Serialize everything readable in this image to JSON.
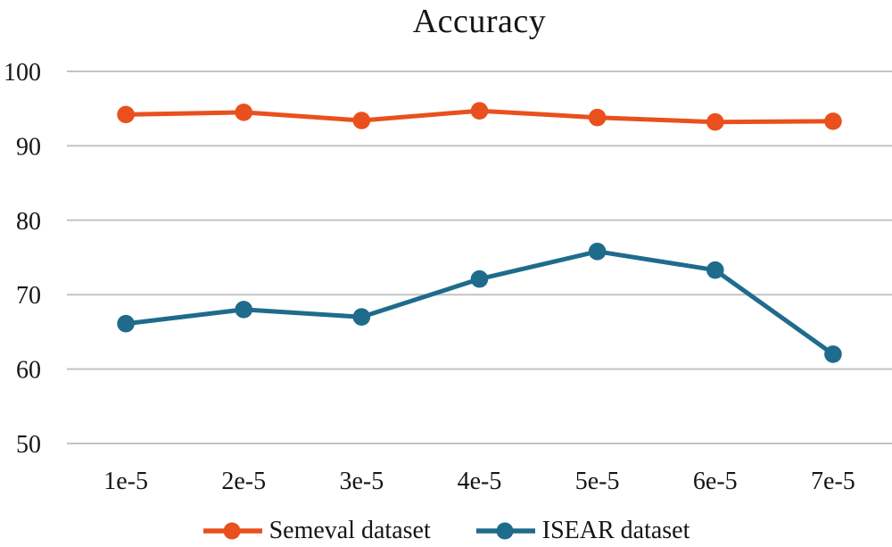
{
  "page": {
    "background_color": "#FFFFFF",
    "text_color": "#161616"
  },
  "chart_data": {
    "type": "line",
    "title": "Accuracy",
    "xlabel": "",
    "ylabel": "",
    "categories": [
      "1e-5",
      "2e-5",
      "3e-5",
      "4e-5",
      "5e-5",
      "6e-5",
      "7e-5"
    ],
    "ylim": [
      50,
      100
    ],
    "yticks": [
      50,
      60,
      70,
      80,
      90,
      100
    ],
    "grid": "horizontal",
    "gridline_color": "#C3C3C3",
    "legend_position": "bottom",
    "series": [
      {
        "name": "Semeval dataset",
        "color": "#E9501D",
        "values": [
          94.2,
          94.5,
          93.4,
          94.7,
          93.8,
          93.2,
          93.3
        ]
      },
      {
        "name": "ISEAR dataset",
        "color": "#1F6B8C",
        "values": [
          66.1,
          68.0,
          67.0,
          72.1,
          75.8,
          73.3,
          62.0
        ]
      }
    ]
  }
}
